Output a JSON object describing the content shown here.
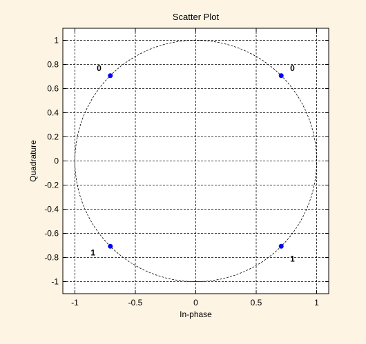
{
  "chart_data": {
    "type": "scatter",
    "title": "Scatter Plot",
    "xlabel": "In-phase",
    "ylabel": "Quadrature",
    "xlim": [
      -1.1,
      1.1
    ],
    "ylim": [
      -1.1,
      1.1
    ],
    "xticks": [
      -1,
      -0.5,
      0,
      0.5,
      1
    ],
    "xtick_labels": [
      "-1",
      "-0.5",
      "0",
      "0.5",
      "1"
    ],
    "yticks": [
      1,
      0.8,
      0.6,
      0.4,
      0.2,
      0,
      -0.2,
      -0.4,
      -0.6,
      -0.8,
      -1
    ],
    "ytick_labels": [
      "1",
      "0.8",
      "0.6",
      "0.4",
      "0.2",
      "0",
      "-0.2",
      "-0.4",
      "-0.6",
      "-0.8",
      "-1"
    ],
    "grid": true,
    "reference_circle": {
      "radius": 1,
      "style": "dashed"
    },
    "series": [
      {
        "x": [
          -0.707,
          0.707,
          -0.707,
          0.707
        ],
        "y": [
          0.707,
          0.707,
          -0.707,
          -0.707
        ],
        "color": "#0000ff"
      }
    ],
    "point_labels": [
      {
        "text": "0",
        "x": -0.8,
        "y": 0.77
      },
      {
        "text": "0",
        "x": 0.8,
        "y": 0.77
      },
      {
        "text": "1",
        "x": -0.85,
        "y": -0.76
      },
      {
        "text": "1",
        "x": 0.8,
        "y": -0.81
      }
    ]
  },
  "colors": {
    "background": "#fdf4e3",
    "axes_background": "#ffffff",
    "marker": "#0000ff",
    "grid": "#000000"
  }
}
